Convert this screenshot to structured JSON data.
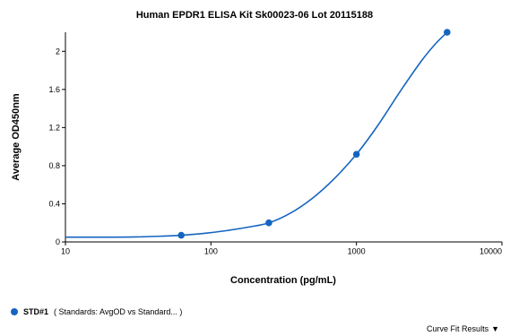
{
  "chart_data": {
    "type": "line",
    "title": "Human EPDR1 ELISA Kit Sk00023-06 Lot 20115188",
    "xlabel": "Concentration (pg/mL)",
    "ylabel": "Average OD450nm",
    "x_scale": "log",
    "xlim": [
      10,
      10000
    ],
    "ylim": [
      0,
      2.2
    ],
    "x_ticks": [
      10,
      100,
      1000,
      10000
    ],
    "x_tick_labels": [
      "10",
      "100",
      "1000",
      "10000"
    ],
    "y_ticks": [
      0,
      0.4,
      0.8,
      1.2,
      1.6,
      2
    ],
    "y_tick_labels": [
      "0",
      "0.4",
      "0.8",
      "1.2",
      "1.6",
      "2"
    ],
    "grid": false,
    "series": [
      {
        "name": "STD#1",
        "color": "#1565c0",
        "points": [
          {
            "x": 62.5,
            "y": 0.07
          },
          {
            "x": 250,
            "y": 0.2
          },
          {
            "x": 1000,
            "y": 0.92
          },
          {
            "x": 4200,
            "y": 2.2
          }
        ],
        "fit_curve": [
          {
            "x": 10,
            "y": 0.05
          },
          {
            "x": 20,
            "y": 0.05
          },
          {
            "x": 30,
            "y": 0.052
          },
          {
            "x": 45,
            "y": 0.06
          },
          {
            "x": 62.5,
            "y": 0.07
          },
          {
            "x": 90,
            "y": 0.09
          },
          {
            "x": 130,
            "y": 0.12
          },
          {
            "x": 180,
            "y": 0.155
          },
          {
            "x": 250,
            "y": 0.2
          },
          {
            "x": 350,
            "y": 0.3
          },
          {
            "x": 500,
            "y": 0.46
          },
          {
            "x": 700,
            "y": 0.66
          },
          {
            "x": 1000,
            "y": 0.92
          },
          {
            "x": 1400,
            "y": 1.22
          },
          {
            "x": 2000,
            "y": 1.58
          },
          {
            "x": 2800,
            "y": 1.9
          },
          {
            "x": 3500,
            "y": 2.08
          },
          {
            "x": 4200,
            "y": 2.2
          }
        ]
      }
    ]
  },
  "legend": {
    "series_label": "STD#1",
    "detail": "( Standards: AvgOD   vs Standard...   )"
  },
  "footer": {
    "curve_fit_label": "Curve Fit Results",
    "caret": "▼"
  }
}
